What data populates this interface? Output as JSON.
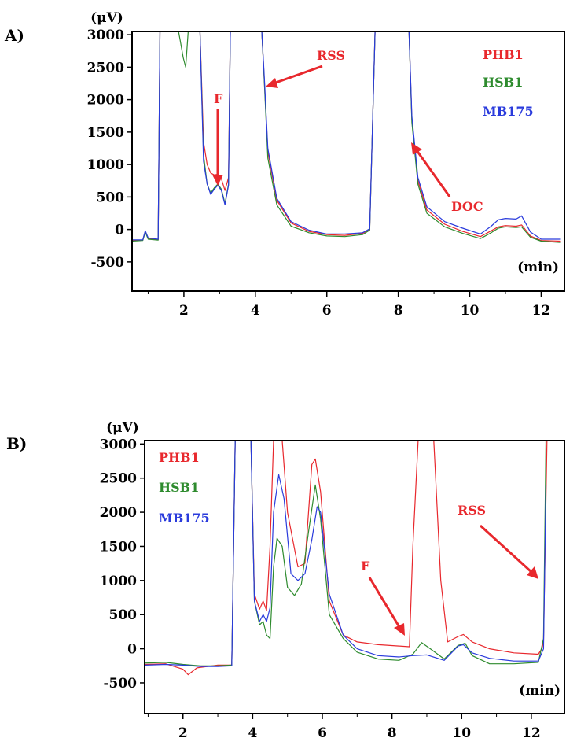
{
  "chart_data": [
    {
      "panel_label": "A)",
      "type": "line",
      "ylabel": "(μV)",
      "xlabel": "(min)",
      "xlim": [
        0.55,
        12.65
      ],
      "ylim": [
        -950,
        3050
      ],
      "x_ticks": [
        2,
        4,
        6,
        8,
        10,
        12
      ],
      "y_ticks": [
        3000,
        2500,
        2000,
        1500,
        1000,
        500,
        0,
        -500
      ],
      "legend_position": "top-right",
      "series": [
        {
          "name": "PHB1",
          "color": "#e8282d",
          "points": [
            [
              0.55,
              -170
            ],
            [
              0.85,
              -165
            ],
            [
              0.92,
              -30
            ],
            [
              1.0,
              -140
            ],
            [
              1.28,
              -160
            ],
            [
              1.33,
              3050
            ],
            [
              2.45,
              3050
            ],
            [
              2.55,
              1350
            ],
            [
              2.65,
              1000
            ],
            [
              2.75,
              870
            ],
            [
              2.85,
              840
            ],
            [
              2.95,
              850
            ],
            [
              3.05,
              780
            ],
            [
              3.15,
              600
            ],
            [
              3.25,
              800
            ],
            [
              3.3,
              3050
            ],
            [
              4.18,
              3050
            ],
            [
              4.25,
              2300
            ],
            [
              4.35,
              1200
            ],
            [
              4.6,
              450
            ],
            [
              5.0,
              100
            ],
            [
              5.5,
              -30
            ],
            [
              6.0,
              -80
            ],
            [
              6.5,
              -90
            ],
            [
              7.0,
              -60
            ],
            [
              7.2,
              0
            ],
            [
              7.35,
              3050
            ],
            [
              8.3,
              3050
            ],
            [
              8.38,
              1700
            ],
            [
              8.55,
              750
            ],
            [
              8.8,
              300
            ],
            [
              9.3,
              80
            ],
            [
              9.8,
              -30
            ],
            [
              10.3,
              -110
            ],
            [
              10.6,
              -20
            ],
            [
              10.8,
              40
            ],
            [
              11.0,
              60
            ],
            [
              11.3,
              50
            ],
            [
              11.45,
              70
            ],
            [
              11.7,
              -100
            ],
            [
              12.0,
              -170
            ],
            [
              12.55,
              -180
            ]
          ]
        },
        {
          "name": "HSB1",
          "color": "#2e8b2e",
          "points": [
            [
              0.55,
              -180
            ],
            [
              0.85,
              -170
            ],
            [
              0.92,
              -40
            ],
            [
              1.0,
              -150
            ],
            [
              1.28,
              -165
            ],
            [
              1.33,
              3050
            ],
            [
              1.85,
              3050
            ],
            [
              1.9,
              2900
            ],
            [
              1.98,
              2650
            ],
            [
              2.05,
              2500
            ],
            [
              2.12,
              3050
            ],
            [
              2.45,
              3050
            ],
            [
              2.55,
              1150
            ],
            [
              2.65,
              700
            ],
            [
              2.75,
              560
            ],
            [
              2.85,
              640
            ],
            [
              2.95,
              700
            ],
            [
              3.05,
              620
            ],
            [
              3.15,
              400
            ],
            [
              3.25,
              700
            ],
            [
              3.3,
              3050
            ],
            [
              4.18,
              3050
            ],
            [
              4.25,
              2280
            ],
            [
              4.35,
              1100
            ],
            [
              4.6,
              380
            ],
            [
              5.0,
              50
            ],
            [
              5.5,
              -50
            ],
            [
              6.0,
              -100
            ],
            [
              6.5,
              -110
            ],
            [
              7.0,
              -80
            ],
            [
              7.2,
              -10
            ],
            [
              7.35,
              3050
            ],
            [
              8.3,
              3050
            ],
            [
              8.38,
              1650
            ],
            [
              8.55,
              700
            ],
            [
              8.8,
              250
            ],
            [
              9.3,
              40
            ],
            [
              9.8,
              -60
            ],
            [
              10.3,
              -140
            ],
            [
              10.6,
              -50
            ],
            [
              10.8,
              20
            ],
            [
              11.0,
              40
            ],
            [
              11.3,
              30
            ],
            [
              11.45,
              40
            ],
            [
              11.7,
              -120
            ],
            [
              12.0,
              -180
            ],
            [
              12.55,
              -200
            ]
          ]
        },
        {
          "name": "MB175",
          "color": "#2a3bdc",
          "points": [
            [
              0.55,
              -160
            ],
            [
              0.85,
              -160
            ],
            [
              0.92,
              -20
            ],
            [
              1.0,
              -130
            ],
            [
              1.28,
              -150
            ],
            [
              1.33,
              3050
            ],
            [
              2.45,
              3050
            ],
            [
              2.55,
              1050
            ],
            [
              2.65,
              700
            ],
            [
              2.75,
              540
            ],
            [
              2.85,
              620
            ],
            [
              2.95,
              680
            ],
            [
              3.05,
              600
            ],
            [
              3.15,
              380
            ],
            [
              3.25,
              680
            ],
            [
              3.3,
              3050
            ],
            [
              4.18,
              3050
            ],
            [
              4.25,
              2350
            ],
            [
              4.35,
              1250
            ],
            [
              4.6,
              480
            ],
            [
              5.0,
              120
            ],
            [
              5.5,
              -10
            ],
            [
              6.0,
              -70
            ],
            [
              6.5,
              -70
            ],
            [
              7.0,
              -50
            ],
            [
              7.2,
              10
            ],
            [
              7.35,
              3050
            ],
            [
              8.3,
              3050
            ],
            [
              8.38,
              1750
            ],
            [
              8.55,
              800
            ],
            [
              8.8,
              350
            ],
            [
              9.3,
              120
            ],
            [
              9.8,
              20
            ],
            [
              10.3,
              -70
            ],
            [
              10.6,
              50
            ],
            [
              10.8,
              150
            ],
            [
              11.0,
              170
            ],
            [
              11.3,
              160
            ],
            [
              11.45,
              210
            ],
            [
              11.7,
              -40
            ],
            [
              12.0,
              -150
            ],
            [
              12.55,
              -150
            ]
          ]
        }
      ],
      "annotations": [
        {
          "text": "F",
          "color": "#e8282d"
        },
        {
          "text": "RSS",
          "color": "#e8282d"
        },
        {
          "text": "DOC",
          "color": "#e8282d"
        }
      ]
    },
    {
      "panel_label": "B)",
      "type": "line",
      "ylabel": "(μV)",
      "xlabel": "(min)",
      "xlim": [
        0.9,
        12.95
      ],
      "ylim": [
        -950,
        3050
      ],
      "x_ticks": [
        2,
        4,
        6,
        8,
        10,
        12
      ],
      "y_ticks": [
        3000,
        2500,
        2000,
        1500,
        1000,
        500,
        0,
        -500
      ],
      "legend_position": "top-left",
      "series": [
        {
          "name": "PHB1",
          "color": "#e8282d",
          "points": [
            [
              0.9,
              -230
            ],
            [
              1.5,
              -220
            ],
            [
              2.0,
              -300
            ],
            [
              2.15,
              -380
            ],
            [
              2.4,
              -280
            ],
            [
              3.0,
              -240
            ],
            [
              3.4,
              -240
            ],
            [
              3.5,
              3050
            ],
            [
              3.95,
              3050
            ],
            [
              4.05,
              800
            ],
            [
              4.2,
              580
            ],
            [
              4.3,
              700
            ],
            [
              4.4,
              560
            ],
            [
              4.5,
              1500
            ],
            [
              4.6,
              3050
            ],
            [
              4.85,
              3050
            ],
            [
              5.0,
              2000
            ],
            [
              5.3,
              1200
            ],
            [
              5.5,
              1250
            ],
            [
              5.7,
              2700
            ],
            [
              5.8,
              2780
            ],
            [
              5.95,
              2300
            ],
            [
              6.2,
              700
            ],
            [
              6.6,
              200
            ],
            [
              7.0,
              100
            ],
            [
              7.6,
              60
            ],
            [
              8.2,
              40
            ],
            [
              8.5,
              30
            ],
            [
              8.6,
              1500
            ],
            [
              8.75,
              3050
            ],
            [
              9.2,
              3050
            ],
            [
              9.4,
              1000
            ],
            [
              9.6,
              100
            ],
            [
              9.9,
              180
            ],
            [
              10.05,
              210
            ],
            [
              10.3,
              100
            ],
            [
              10.8,
              0
            ],
            [
              11.5,
              -60
            ],
            [
              12.2,
              -80
            ],
            [
              12.3,
              0
            ],
            [
              12.35,
              100
            ],
            [
              12.45,
              3050
            ]
          ]
        },
        {
          "name": "HSB1",
          "color": "#2e8b2e",
          "points": [
            [
              0.9,
              -210
            ],
            [
              1.5,
              -200
            ],
            [
              2.0,
              -230
            ],
            [
              2.5,
              -250
            ],
            [
              3.0,
              -250
            ],
            [
              3.4,
              -240
            ],
            [
              3.5,
              3050
            ],
            [
              3.95,
              3050
            ],
            [
              4.05,
              700
            ],
            [
              4.2,
              350
            ],
            [
              4.3,
              400
            ],
            [
              4.4,
              200
            ],
            [
              4.5,
              150
            ],
            [
              4.6,
              1200
            ],
            [
              4.7,
              1620
            ],
            [
              4.85,
              1500
            ],
            [
              5.0,
              900
            ],
            [
              5.2,
              780
            ],
            [
              5.4,
              950
            ],
            [
              5.6,
              1700
            ],
            [
              5.8,
              2400
            ],
            [
              5.95,
              1900
            ],
            [
              6.2,
              500
            ],
            [
              6.6,
              150
            ],
            [
              7.0,
              -50
            ],
            [
              7.6,
              -150
            ],
            [
              8.2,
              -170
            ],
            [
              8.6,
              -80
            ],
            [
              8.85,
              90
            ],
            [
              9.1,
              0
            ],
            [
              9.5,
              -150
            ],
            [
              9.9,
              50
            ],
            [
              10.1,
              80
            ],
            [
              10.3,
              -100
            ],
            [
              10.8,
              -220
            ],
            [
              11.5,
              -220
            ],
            [
              12.2,
              -200
            ],
            [
              12.35,
              150
            ],
            [
              12.42,
              3050
            ]
          ]
        },
        {
          "name": "MB175",
          "color": "#2a3bdc",
          "points": [
            [
              0.9,
              -240
            ],
            [
              1.5,
              -230
            ],
            [
              2.0,
              -240
            ],
            [
              2.5,
              -260
            ],
            [
              3.0,
              -260
            ],
            [
              3.4,
              -250
            ],
            [
              3.5,
              3050
            ],
            [
              3.95,
              3050
            ],
            [
              4.05,
              700
            ],
            [
              4.2,
              400
            ],
            [
              4.3,
              500
            ],
            [
              4.4,
              400
            ],
            [
              4.5,
              600
            ],
            [
              4.6,
              2000
            ],
            [
              4.75,
              2550
            ],
            [
              4.9,
              2200
            ],
            [
              5.1,
              1100
            ],
            [
              5.3,
              1000
            ],
            [
              5.5,
              1100
            ],
            [
              5.7,
              1600
            ],
            [
              5.85,
              2080
            ],
            [
              5.95,
              2000
            ],
            [
              6.2,
              800
            ],
            [
              6.6,
              200
            ],
            [
              7.0,
              0
            ],
            [
              7.6,
              -100
            ],
            [
              8.2,
              -120
            ],
            [
              8.6,
              -100
            ],
            [
              9.0,
              -90
            ],
            [
              9.5,
              -170
            ],
            [
              9.9,
              40
            ],
            [
              10.05,
              60
            ],
            [
              10.3,
              -60
            ],
            [
              10.8,
              -140
            ],
            [
              11.5,
              -180
            ],
            [
              12.2,
              -180
            ],
            [
              12.35,
              0
            ],
            [
              12.42,
              2400
            ]
          ]
        }
      ],
      "annotations": [
        {
          "text": "F",
          "color": "#e8282d"
        },
        {
          "text": "RSS",
          "color": "#e8282d"
        }
      ]
    }
  ]
}
